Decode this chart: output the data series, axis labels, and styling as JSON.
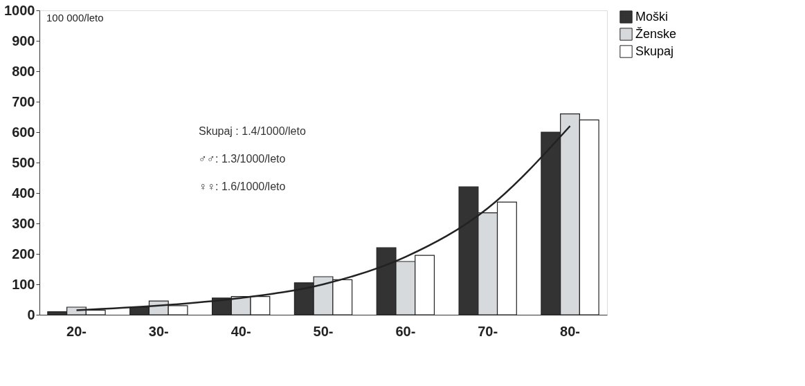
{
  "chart_data": {
    "type": "bar",
    "ylabel": "100 000/leto",
    "categories": [
      "20-",
      "30-",
      "40-",
      "50-",
      "60-",
      "70-",
      "80-"
    ],
    "series": [
      {
        "name": "Moški",
        "color": "#333333",
        "values": [
          10,
          25,
          55,
          105,
          220,
          420,
          600
        ]
      },
      {
        "name": "Ženske",
        "color": "#d6dadd",
        "values": [
          25,
          45,
          60,
          125,
          175,
          335,
          660
        ]
      },
      {
        "name": "Skupaj",
        "color": "#ffffff",
        "values": [
          15,
          30,
          60,
          115,
          195,
          370,
          640
        ]
      },
      {
        "type": "line",
        "color": "#222222",
        "values": [
          15,
          30,
          55,
          100,
          190,
          350,
          620
        ]
      }
    ],
    "ylim": [
      0,
      1000
    ],
    "yticks": [
      0,
      100,
      200,
      300,
      400,
      500,
      600,
      700,
      800,
      900,
      1000
    ],
    "annotations": [
      "Skupaj : 1.4/1000/leto",
      "♂♂: 1.3/1000/leto",
      "♀♀: 1.6/1000/leto"
    ],
    "legend": "right",
    "grid": false
  }
}
